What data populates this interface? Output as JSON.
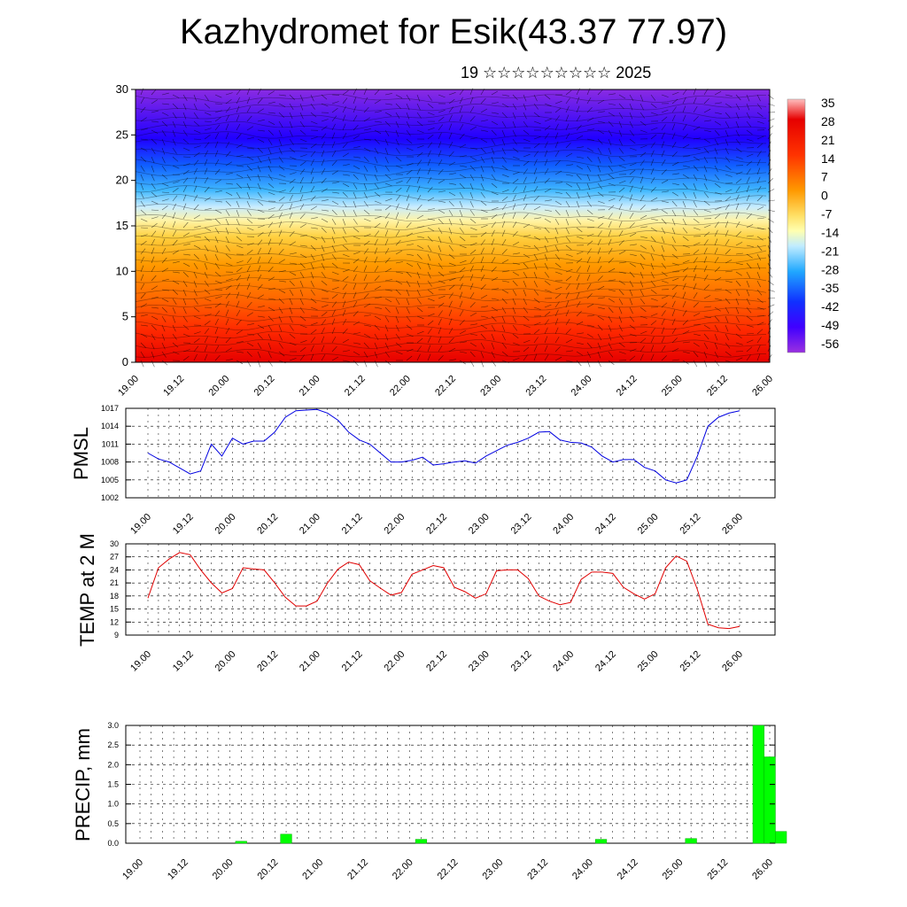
{
  "title": "Kazhydromet for Esik(43.37 77.97)",
  "subtitle": "19 ☆☆☆☆☆☆☆☆☆ 2025",
  "time_labels": [
    "19.00",
    "19.12",
    "20.00",
    "20.12",
    "21.00",
    "21.12",
    "22.00",
    "22.12",
    "23.00",
    "23.12",
    "24.00",
    "24.12",
    "25.00",
    "25.12",
    "26.00"
  ],
  "chart_data": [
    {
      "type": "heatmap",
      "ylim": [
        0,
        30
      ],
      "yticks": [
        "0",
        "5",
        "10",
        "15",
        "20",
        "25",
        "30"
      ],
      "colorbar_labels": [
        "35",
        "28",
        "21",
        "14",
        "7",
        "0",
        "-7",
        "-14",
        "-21",
        "-28",
        "-35",
        "-42",
        "-49",
        "-56"
      ],
      "x": [
        "19.00",
        "19.12",
        "20.00",
        "20.12",
        "21.00",
        "21.12",
        "22.00",
        "22.12",
        "23.00",
        "23.12",
        "24.00",
        "24.12",
        "25.00",
        "25.12",
        "26.00"
      ],
      "levels": [
        0,
        5,
        10,
        15,
        20,
        25,
        30
      ],
      "values_description": "temperature field with wind barbs",
      "approx_values_by_level": [
        30,
        22,
        12,
        0,
        -25,
        -50,
        -56
      ]
    },
    {
      "type": "line",
      "ylabel": "PMSL",
      "ylim": [
        1002,
        1017
      ],
      "yticks": [
        "1002",
        "1005",
        "1008",
        "1011",
        "1014",
        "1017"
      ],
      "series": [
        {
          "color": "#0000e0",
          "values": [
            1009.5,
            1008.5,
            1008,
            1007,
            1006,
            1006.5,
            1011,
            1009,
            1012,
            1011,
            1011.5,
            1011.5,
            1013,
            1015.5,
            1016.6,
            1016.7,
            1016.8,
            1016.2,
            1015,
            1013,
            1011.7,
            1011,
            1009.5,
            1008,
            1008,
            1008.3,
            1008.8,
            1007.5,
            1007.7,
            1008,
            1008.2,
            1007.8,
            1009,
            1009.9,
            1010.8,
            1011.3,
            1012,
            1013,
            1013.1,
            1011.7,
            1011.3,
            1011.2,
            1010.5,
            1009,
            1008,
            1008.4,
            1008.4,
            1007.1,
            1006.5,
            1005,
            1004.5,
            1005,
            1009,
            1014,
            1015.5,
            1016.2,
            1016.6
          ]
        }
      ]
    },
    {
      "type": "line",
      "ylabel": "TEMP at 2 M",
      "ylim": [
        9,
        30
      ],
      "yticks": [
        "9",
        "12",
        "15",
        "18",
        "21",
        "24",
        "27",
        "30"
      ],
      "series": [
        {
          "color": "#e00000",
          "values": [
            17.5,
            24.5,
            26.5,
            28,
            27.5,
            24,
            21,
            18.7,
            19.7,
            24.5,
            24.2,
            24,
            21,
            17.7,
            15.7,
            15.7,
            16.8,
            21,
            24.2,
            25.8,
            25.2,
            21.5,
            19.8,
            18.2,
            18.8,
            23,
            24,
            25,
            24.5,
            20,
            19,
            17.5,
            18.5,
            23.8,
            24,
            24,
            22,
            18,
            16.8,
            16,
            16.5,
            21.8,
            23.5,
            23.5,
            23.2,
            20,
            18.5,
            17.3,
            18.5,
            24.5,
            27.2,
            26,
            19.5,
            11.5,
            10.7,
            10.5,
            11
          ]
        }
      ]
    },
    {
      "type": "bar",
      "ylabel": "PRECIP, mm",
      "ylim": [
        0,
        3.0
      ],
      "yticks": [
        "0.0",
        "0.5",
        "1.0",
        "1.5",
        "2.0",
        "2.5",
        "3.0"
      ],
      "color": "#00ff00",
      "bars": [
        {
          "x": "20.00",
          "value": 0.05
        },
        {
          "x": "20.12",
          "value": 0.23
        },
        {
          "x": "22.00",
          "value": 0.1
        },
        {
          "x": "24.00",
          "value": 0.1
        },
        {
          "x": "25.00",
          "value": 0.12
        },
        {
          "x": "25.12",
          "value": 3.0
        },
        {
          "x": "25.12",
          "value": 2.2
        },
        {
          "x": "26.00",
          "value": 0.3
        }
      ]
    }
  ]
}
